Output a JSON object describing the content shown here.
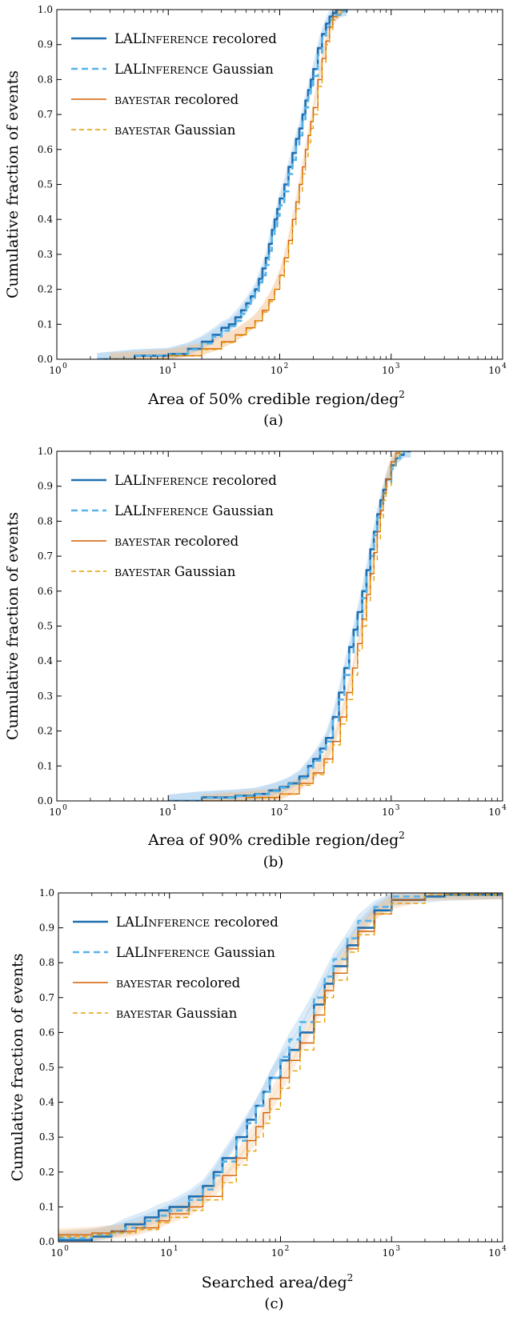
{
  "colors": {
    "lal_recolored": "#1f6fb0",
    "lal_gaussian": "#56b4e9",
    "bay_recolored": "#d55e00",
    "bay_gaussian": "#e69f00",
    "band_blue": "#9cc7ec",
    "band_orange": "#f2c08f"
  },
  "chart_data": [
    {
      "type": "line",
      "panel": "(a)",
      "xlabel": "Area of 50% credible region/deg",
      "xlabel_sup": "2",
      "ylabel": "Cumulative fraction of events",
      "xscale": "log",
      "xlim": [
        1,
        10000
      ],
      "ylim": [
        0,
        1
      ],
      "x_ticks": [
        {
          "base": "10",
          "exp": "0"
        },
        {
          "base": "10",
          "exp": "1"
        },
        {
          "base": "10",
          "exp": "2"
        },
        {
          "base": "10",
          "exp": "3"
        },
        {
          "base": "10",
          "exp": "4"
        }
      ],
      "y_ticks": [
        "0.0",
        "0.1",
        "0.2",
        "0.3",
        "0.4",
        "0.5",
        "0.6",
        "0.7",
        "0.8",
        "0.9",
        "1.0"
      ],
      "legend_position": "top-left",
      "series": [
        {
          "name": "LALINFERENCE recolored",
          "legend_main": "LALI",
          "legend_sc": "NFERENCE",
          "legend_rest": " recolored",
          "style": "solid-thick",
          "color_key": "lal_recolored",
          "x": [
            2.3,
            5,
            10,
            15,
            20,
            25,
            30,
            35,
            40,
            45,
            50,
            55,
            60,
            65,
            70,
            75,
            80,
            85,
            90,
            95,
            100,
            110,
            120,
            130,
            140,
            150,
            160,
            170,
            180,
            190,
            200,
            220,
            240,
            260,
            280,
            300,
            320,
            350,
            400
          ],
          "y": [
            0.0,
            0.01,
            0.015,
            0.03,
            0.05,
            0.07,
            0.09,
            0.1,
            0.12,
            0.14,
            0.16,
            0.18,
            0.2,
            0.23,
            0.26,
            0.29,
            0.33,
            0.37,
            0.4,
            0.43,
            0.46,
            0.5,
            0.55,
            0.59,
            0.63,
            0.66,
            0.7,
            0.74,
            0.77,
            0.8,
            0.83,
            0.89,
            0.93,
            0.96,
            0.98,
            0.99,
            1.0,
            1.0,
            1.0
          ]
        },
        {
          "name": "LALINFERENCE Gaussian",
          "legend_main": "LALI",
          "legend_sc": "NFERENCE",
          "legend_rest": " Gaussian",
          "style": "dashed-thick",
          "color_key": "lal_gaussian",
          "x": [
            2.3,
            5,
            10,
            15,
            20,
            25,
            30,
            35,
            40,
            45,
            50,
            55,
            60,
            65,
            70,
            75,
            80,
            85,
            90,
            95,
            100,
            110,
            120,
            130,
            140,
            150,
            160,
            170,
            180,
            190,
            200,
            220,
            240,
            260,
            280,
            300,
            350,
            400
          ],
          "y": [
            0.0,
            0.01,
            0.014,
            0.028,
            0.045,
            0.065,
            0.082,
            0.095,
            0.11,
            0.13,
            0.15,
            0.17,
            0.19,
            0.22,
            0.24,
            0.27,
            0.31,
            0.35,
            0.38,
            0.41,
            0.44,
            0.48,
            0.53,
            0.57,
            0.61,
            0.64,
            0.68,
            0.72,
            0.75,
            0.78,
            0.81,
            0.87,
            0.92,
            0.95,
            0.97,
            0.985,
            0.995,
            1.0
          ]
        },
        {
          "name": "BAYESTAR recolored",
          "legend_main": "",
          "legend_sc": "BAYESTAR",
          "legend_rest": " recolored",
          "style": "solid-thin",
          "color_key": "bay_recolored",
          "x": [
            3,
            10,
            20,
            30,
            40,
            50,
            60,
            70,
            80,
            90,
            100,
            110,
            120,
            130,
            140,
            150,
            160,
            170,
            180,
            190,
            200,
            220,
            240,
            260,
            280,
            300,
            330,
            360
          ],
          "y": [
            0.0,
            0.01,
            0.03,
            0.05,
            0.07,
            0.09,
            0.11,
            0.14,
            0.17,
            0.2,
            0.24,
            0.29,
            0.34,
            0.4,
            0.45,
            0.5,
            0.55,
            0.6,
            0.64,
            0.68,
            0.72,
            0.8,
            0.86,
            0.91,
            0.95,
            0.98,
            1.0,
            1.0
          ]
        },
        {
          "name": "BAYESTAR Gaussian",
          "legend_main": "",
          "legend_sc": "BAYESTAR",
          "legend_rest": " Gaussian",
          "style": "dashed-thin",
          "color_key": "bay_gaussian",
          "x": [
            3,
            10,
            20,
            30,
            40,
            50,
            60,
            70,
            80,
            90,
            100,
            110,
            120,
            130,
            140,
            150,
            160,
            170,
            180,
            190,
            200,
            220,
            240,
            260,
            280,
            300,
            330,
            360
          ],
          "y": [
            0.0,
            0.01,
            0.028,
            0.048,
            0.068,
            0.088,
            0.11,
            0.135,
            0.165,
            0.2,
            0.235,
            0.28,
            0.33,
            0.38,
            0.43,
            0.48,
            0.53,
            0.58,
            0.62,
            0.66,
            0.7,
            0.78,
            0.85,
            0.9,
            0.94,
            0.97,
            0.99,
            1.0
          ]
        }
      ]
    },
    {
      "type": "line",
      "panel": "(b)",
      "xlabel": "Area of 90% credible region/deg",
      "xlabel_sup": "2",
      "ylabel": "Cumulative fraction of events",
      "xscale": "log",
      "xlim": [
        1,
        10000
      ],
      "ylim": [
        0,
        1
      ],
      "x_ticks": [
        {
          "base": "10",
          "exp": "0"
        },
        {
          "base": "10",
          "exp": "1"
        },
        {
          "base": "10",
          "exp": "2"
        },
        {
          "base": "10",
          "exp": "3"
        },
        {
          "base": "10",
          "exp": "4"
        }
      ],
      "y_ticks": [
        "0.0",
        "0.1",
        "0.2",
        "0.3",
        "0.4",
        "0.5",
        "0.6",
        "0.7",
        "0.8",
        "0.9",
        "1.0"
      ],
      "legend_position": "top-left",
      "series": [
        {
          "name": "LALINFERENCE recolored",
          "legend_main": "LALI",
          "legend_sc": "NFERENCE",
          "legend_rest": " recolored",
          "style": "solid-thick",
          "color_key": "lal_recolored",
          "x": [
            10,
            20,
            40,
            60,
            80,
            100,
            120,
            150,
            180,
            200,
            230,
            260,
            300,
            340,
            380,
            420,
            460,
            500,
            550,
            600,
            650,
            700,
            750,
            800,
            850,
            900,
            1000,
            1100,
            1200,
            1300,
            1500
          ],
          "y": [
            0.0,
            0.01,
            0.015,
            0.02,
            0.03,
            0.04,
            0.05,
            0.07,
            0.1,
            0.12,
            0.15,
            0.18,
            0.24,
            0.31,
            0.38,
            0.44,
            0.49,
            0.54,
            0.6,
            0.66,
            0.72,
            0.77,
            0.82,
            0.86,
            0.89,
            0.92,
            0.96,
            0.98,
            0.99,
            1.0,
            1.0
          ]
        },
        {
          "name": "LALINFERENCE Gaussian",
          "legend_main": "LALI",
          "legend_sc": "NFERENCE",
          "legend_rest": " Gaussian",
          "style": "dashed-thick",
          "color_key": "lal_gaussian",
          "x": [
            10,
            20,
            40,
            60,
            80,
            100,
            120,
            150,
            180,
            200,
            230,
            260,
            300,
            340,
            380,
            420,
            460,
            500,
            550,
            600,
            650,
            700,
            750,
            800,
            850,
            900,
            1000,
            1100,
            1200,
            1300,
            1500
          ],
          "y": [
            0.0,
            0.009,
            0.014,
            0.019,
            0.028,
            0.038,
            0.048,
            0.066,
            0.095,
            0.115,
            0.14,
            0.17,
            0.23,
            0.29,
            0.36,
            0.42,
            0.47,
            0.52,
            0.58,
            0.64,
            0.7,
            0.76,
            0.81,
            0.85,
            0.88,
            0.91,
            0.95,
            0.98,
            0.99,
            1.0,
            1.0
          ]
        },
        {
          "name": "BAYESTAR recolored",
          "legend_main": "",
          "legend_sc": "BAYESTAR",
          "legend_rest": " recolored",
          "style": "solid-thin",
          "color_key": "bay_recolored",
          "x": [
            20,
            50,
            100,
            150,
            200,
            250,
            300,
            350,
            400,
            450,
            500,
            550,
            600,
            650,
            700,
            750,
            800,
            850,
            900,
            1000,
            1100,
            1200
          ],
          "y": [
            0.0,
            0.01,
            0.02,
            0.05,
            0.08,
            0.12,
            0.17,
            0.24,
            0.31,
            0.38,
            0.45,
            0.52,
            0.59,
            0.65,
            0.71,
            0.77,
            0.83,
            0.88,
            0.92,
            0.97,
            0.995,
            1.0
          ]
        },
        {
          "name": "BAYESTAR Gaussian",
          "legend_main": "",
          "legend_sc": "BAYESTAR",
          "legend_rest": " Gaussian",
          "style": "dashed-thin",
          "color_key": "bay_gaussian",
          "x": [
            20,
            50,
            100,
            150,
            200,
            250,
            300,
            350,
            400,
            450,
            500,
            550,
            600,
            650,
            700,
            750,
            800,
            850,
            900,
            1000,
            1100,
            1200
          ],
          "y": [
            0.0,
            0.009,
            0.019,
            0.045,
            0.075,
            0.11,
            0.16,
            0.22,
            0.29,
            0.36,
            0.43,
            0.5,
            0.57,
            0.63,
            0.69,
            0.75,
            0.81,
            0.86,
            0.9,
            0.96,
            0.99,
            1.0
          ]
        }
      ]
    },
    {
      "type": "line",
      "panel": "(c)",
      "xlabel": "Searched area/deg",
      "xlabel_sup": "2",
      "ylabel": "Cumulative fraction of events",
      "xscale": "log",
      "xlim": [
        1,
        10000
      ],
      "ylim": [
        0,
        1
      ],
      "x_ticks": [
        {
          "base": "10",
          "exp": "0"
        },
        {
          "base": "10",
          "exp": "1"
        },
        {
          "base": "10",
          "exp": "2"
        },
        {
          "base": "10",
          "exp": "3"
        },
        {
          "base": "10",
          "exp": "4"
        }
      ],
      "y_ticks": [
        "0.0",
        "0.1",
        "0.2",
        "0.3",
        "0.4",
        "0.5",
        "0.6",
        "0.7",
        "0.8",
        "0.9",
        "1.0"
      ],
      "legend_position": "top-left",
      "series": [
        {
          "name": "LALINFERENCE recolored",
          "legend_main": "LALI",
          "legend_sc": "NFERENCE",
          "legend_rest": " recolored",
          "style": "solid-thick",
          "color_key": "lal_recolored",
          "x": [
            1,
            2,
            3,
            4,
            6,
            8,
            10,
            15,
            20,
            25,
            30,
            40,
            50,
            60,
            70,
            80,
            100,
            120,
            150,
            200,
            250,
            300,
            400,
            500,
            700,
            1000,
            2000,
            3000,
            10000
          ],
          "y": [
            0.005,
            0.015,
            0.03,
            0.05,
            0.07,
            0.09,
            0.1,
            0.13,
            0.16,
            0.2,
            0.24,
            0.3,
            0.35,
            0.39,
            0.43,
            0.47,
            0.52,
            0.55,
            0.6,
            0.68,
            0.74,
            0.79,
            0.85,
            0.9,
            0.95,
            0.98,
            0.99,
            0.995,
            1.0
          ]
        },
        {
          "name": "LALINFERENCE Gaussian",
          "legend_main": "LALI",
          "legend_sc": "NFERENCE",
          "legend_rest": " Gaussian",
          "style": "dashed-thick",
          "color_key": "lal_gaussian",
          "x": [
            1,
            2,
            3,
            4,
            6,
            8,
            10,
            15,
            20,
            25,
            30,
            40,
            50,
            60,
            70,
            80,
            100,
            120,
            150,
            200,
            250,
            300,
            400,
            500,
            700,
            1000,
            2000,
            10000
          ],
          "y": [
            0.01,
            0.02,
            0.03,
            0.04,
            0.06,
            0.075,
            0.09,
            0.12,
            0.15,
            0.19,
            0.23,
            0.29,
            0.34,
            0.39,
            0.43,
            0.47,
            0.53,
            0.58,
            0.63,
            0.7,
            0.76,
            0.81,
            0.87,
            0.92,
            0.96,
            0.99,
            1.0,
            1.0
          ]
        },
        {
          "name": "BAYESTAR recolored",
          "legend_main": "",
          "legend_sc": "BAYESTAR",
          "legend_rest": " recolored",
          "style": "solid-thin",
          "color_key": "bay_recolored",
          "x": [
            1,
            2,
            3,
            5,
            8,
            10,
            15,
            20,
            30,
            40,
            50,
            60,
            70,
            80,
            100,
            120,
            150,
            200,
            250,
            300,
            400,
            500,
            700,
            1000,
            2000,
            10000
          ],
          "y": [
            0.02,
            0.025,
            0.03,
            0.04,
            0.06,
            0.08,
            0.1,
            0.13,
            0.19,
            0.24,
            0.29,
            0.33,
            0.37,
            0.41,
            0.47,
            0.52,
            0.57,
            0.65,
            0.72,
            0.77,
            0.84,
            0.89,
            0.94,
            0.98,
            1.0,
            1.0
          ]
        },
        {
          "name": "BAYESTAR Gaussian",
          "legend_main": "",
          "legend_sc": "BAYESTAR",
          "legend_rest": " Gaussian",
          "style": "dashed-thin",
          "color_key": "bay_gaussian",
          "x": [
            1,
            2,
            3,
            5,
            8,
            10,
            15,
            20,
            30,
            40,
            50,
            60,
            70,
            80,
            100,
            120,
            150,
            200,
            250,
            300,
            400,
            500,
            700,
            1000,
            2000,
            10000
          ],
          "y": [
            0.015,
            0.02,
            0.025,
            0.035,
            0.055,
            0.07,
            0.09,
            0.12,
            0.17,
            0.22,
            0.26,
            0.3,
            0.34,
            0.38,
            0.44,
            0.49,
            0.55,
            0.63,
            0.7,
            0.75,
            0.83,
            0.88,
            0.94,
            0.97,
            0.995,
            1.0
          ]
        }
      ]
    }
  ]
}
